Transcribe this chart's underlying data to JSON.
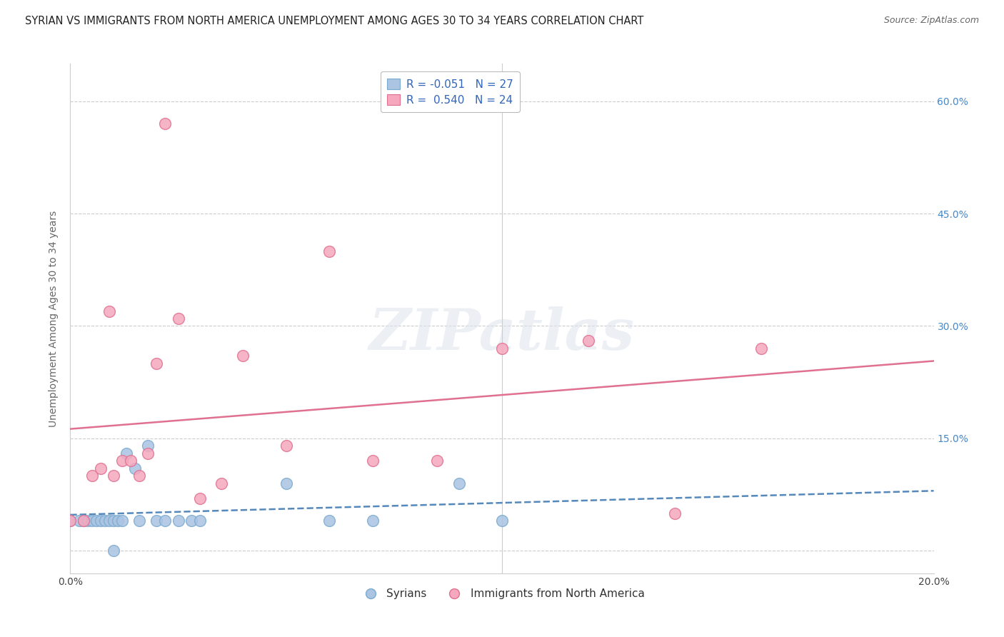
{
  "title": "SYRIAN VS IMMIGRANTS FROM NORTH AMERICA UNEMPLOYMENT AMONG AGES 30 TO 34 YEARS CORRELATION CHART",
  "source": "Source: ZipAtlas.com",
  "ylabel": "Unemployment Among Ages 30 to 34 years",
  "xlim": [
    0.0,
    0.2
  ],
  "ylim": [
    -0.03,
    0.65
  ],
  "yticks": [
    0.0,
    0.15,
    0.3,
    0.45,
    0.6
  ],
  "ytick_labels_left": [
    "",
    "",
    "",
    "",
    ""
  ],
  "ytick_labels_right": [
    "",
    "15.0%",
    "30.0%",
    "45.0%",
    "60.0%"
  ],
  "xticks": [
    0.0,
    0.05,
    0.1,
    0.15,
    0.2
  ],
  "xtick_labels": [
    "0.0%",
    "",
    "",
    "",
    "20.0%"
  ],
  "background_color": "#ffffff",
  "watermark": "ZIPatlas",
  "syrians": {
    "color": "#aac4e2",
    "edgecolor": "#7aaad0",
    "R": -0.051,
    "N": 27,
    "x": [
      0.0,
      0.002,
      0.003,
      0.004,
      0.005,
      0.006,
      0.007,
      0.008,
      0.009,
      0.01,
      0.01,
      0.011,
      0.012,
      0.013,
      0.015,
      0.016,
      0.018,
      0.02,
      0.022,
      0.025,
      0.028,
      0.03,
      0.05,
      0.06,
      0.07,
      0.09,
      0.1
    ],
    "y": [
      0.04,
      0.04,
      0.04,
      0.04,
      0.04,
      0.04,
      0.04,
      0.04,
      0.04,
      0.04,
      0.0,
      0.04,
      0.04,
      0.13,
      0.11,
      0.04,
      0.14,
      0.04,
      0.04,
      0.04,
      0.04,
      0.04,
      0.09,
      0.04,
      0.04,
      0.09,
      0.04
    ]
  },
  "north_america": {
    "color": "#f5a8be",
    "edgecolor": "#e07090",
    "R": 0.54,
    "N": 24,
    "x": [
      0.0,
      0.003,
      0.005,
      0.007,
      0.009,
      0.01,
      0.012,
      0.014,
      0.016,
      0.018,
      0.02,
      0.022,
      0.025,
      0.03,
      0.035,
      0.04,
      0.05,
      0.06,
      0.07,
      0.085,
      0.1,
      0.12,
      0.14,
      0.16
    ],
    "y": [
      0.04,
      0.04,
      0.1,
      0.11,
      0.32,
      0.1,
      0.12,
      0.12,
      0.1,
      0.13,
      0.25,
      0.57,
      0.31,
      0.07,
      0.09,
      0.26,
      0.14,
      0.4,
      0.12,
      0.12,
      0.27,
      0.28,
      0.05,
      0.27
    ]
  },
  "trend_syrian_color": "#5588bb",
  "trend_syrian_linestyle": "--",
  "trend_na_color": "#e07090",
  "trend_na_linestyle": "-",
  "legend_entries": [
    {
      "label": "R = -0.051   N = 27",
      "color": "#aac4e2"
    },
    {
      "label": "R =  0.540   N = 24",
      "color": "#f5a8be"
    }
  ],
  "legend_text_color": "#3366bb",
  "bottom_legend": [
    "Syrians",
    "Immigrants from North America"
  ],
  "title_fontsize": 10.5,
  "source_fontsize": 9,
  "ylabel_fontsize": 10,
  "tick_fontsize": 10,
  "right_tick_color": "#4488cc",
  "grid_color": "#cccccc",
  "spine_color": "#cccccc",
  "vertical_line_x": 0.1
}
